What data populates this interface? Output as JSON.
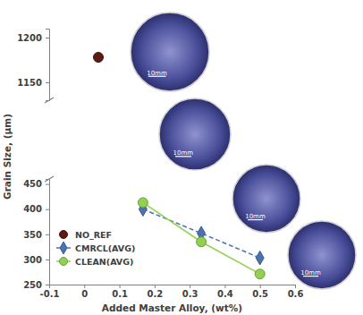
{
  "chart_data": [
    {
      "type": "line",
      "xlim": [
        -0.1,
        0.6
      ],
      "ylim": [
        1130,
        1210
      ],
      "yticks": [
        1150,
        1200
      ],
      "tick_labels": "y",
      "series": [
        {
          "name": "NO_REF",
          "color": "#5b1a12",
          "marker": "circle",
          "line_style": "none",
          "x": [
            0.04
          ],
          "values": [
            1178
          ]
        }
      ]
    },
    {
      "type": "line",
      "y_label": "Grain Size, (μm)",
      "x_label": "Added Master Alloy, (wt%)",
      "xlim": [
        -0.1,
        0.6
      ],
      "xticks": [
        -0.1,
        0,
        0.1,
        0.2,
        0.3,
        0.4,
        0.5,
        0.6
      ],
      "ylim": [
        250,
        460
      ],
      "yticks": [
        250,
        300,
        350,
        400,
        450
      ],
      "legend": "lower left",
      "annotations": [
        "10mm",
        "10mm",
        "10mm",
        "10mm"
      ],
      "series": [
        {
          "name": "CMRCL(AVG)",
          "color": "#4a72b0",
          "marker": "diamond",
          "line_style": "dashed",
          "x": [
            0.167,
            0.333,
            0.5
          ],
          "values": [
            400,
            352,
            303
          ]
        },
        {
          "name": "CLEAN(AVG)",
          "color": "#92d050",
          "marker": "circle",
          "line_style": "solid",
          "x": [
            0.167,
            0.333,
            0.5
          ],
          "values": [
            413,
            335,
            271
          ]
        }
      ]
    }
  ]
}
